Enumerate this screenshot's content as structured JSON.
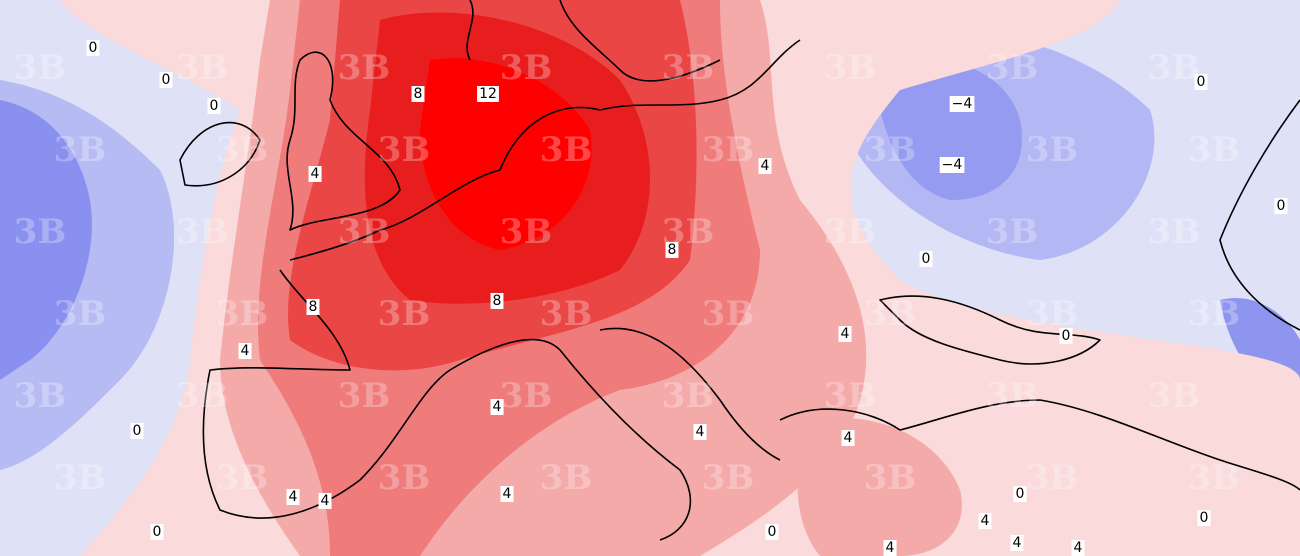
{
  "map": {
    "watermark": "3B",
    "contour_labels": [
      "0",
      "0",
      "0",
      "8",
      "12",
      "4",
      "4",
      "−4",
      "−4",
      "0",
      "0",
      "8",
      "0",
      "8",
      "8",
      "4",
      "4",
      "0",
      "4",
      "0",
      "4",
      "4",
      "4",
      "4",
      "4",
      "0",
      "0",
      "0",
      "0",
      "4",
      "4",
      "4",
      "4"
    ]
  }
}
